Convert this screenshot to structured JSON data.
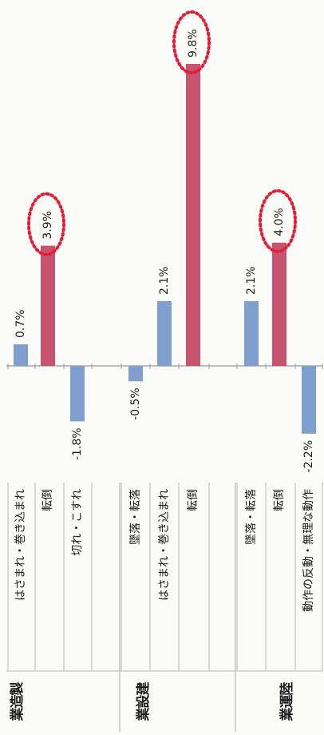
{
  "chart_data": {
    "type": "bar",
    "orientation": "horizontal",
    "unit": "%",
    "xlim": [
      -2.5,
      10.5
    ],
    "grid": false,
    "colors": {
      "rate": "#7f9fcf",
      "fall": "#c8536e",
      "highlight": "#e01e37"
    },
    "groups": [
      {
        "industry": [
          "製",
          "造",
          "業"
        ],
        "bars": [
          {
            "category": "はさまれ・巻き込まれ",
            "value": 0.7,
            "label": "0.7%",
            "color": "rate",
            "highlight": false
          },
          {
            "category": "転倒",
            "value": 3.9,
            "label": "3.9%",
            "color": "fall",
            "highlight": true
          },
          {
            "category": "切れ・こすれ",
            "value": -1.8,
            "label": "-1.8%",
            "color": "rate",
            "highlight": false
          }
        ]
      },
      {
        "industry": [
          "建",
          "設",
          "業"
        ],
        "bars": [
          {
            "category": "墜落・転落",
            "value": -0.5,
            "label": "-0.5%",
            "color": "rate",
            "highlight": false
          },
          {
            "category": "はさまれ・巻き込まれ",
            "value": 2.1,
            "label": "2.1%",
            "color": "rate",
            "highlight": false
          },
          {
            "category": "転倒",
            "value": 9.8,
            "label": "9.8%",
            "color": "fall",
            "highlight": true
          }
        ]
      },
      {
        "industry": [
          "陸",
          "運",
          "業"
        ],
        "bars": [
          {
            "category": "墜落・転落",
            "value": 2.1,
            "label": "2.1%",
            "color": "rate",
            "highlight": false
          },
          {
            "category": "転倒",
            "value": 4.0,
            "label": "4.0%",
            "color": "fall",
            "highlight": true
          },
          {
            "category": "動作の反動・無理な動作",
            "value": -2.2,
            "label": "-2.2%",
            "color": "rate",
            "highlight": false
          }
        ]
      }
    ]
  }
}
